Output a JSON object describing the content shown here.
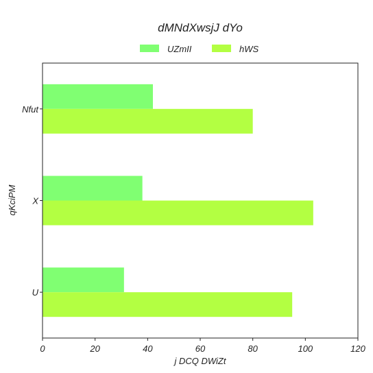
{
  "chart_data": {
    "type": "bar",
    "orientation": "horizontal",
    "title": "dMNdXwsjJ dYo",
    "xlabel": "j DCQ DWiZt",
    "ylabel": "qKciPM",
    "categories": [
      "Nfut",
      "X",
      "U"
    ],
    "series": [
      {
        "name": "UZmII",
        "color": "#80ff72",
        "values": [
          42,
          38,
          31
        ]
      },
      {
        "name": "hWS",
        "color": "#b3ff42",
        "values": [
          80,
          103,
          95
        ]
      }
    ],
    "xlim": [
      0,
      120
    ],
    "xticks": [
      0,
      20,
      40,
      60,
      80,
      100,
      120
    ],
    "grid": false,
    "legend_position": "top-center"
  }
}
